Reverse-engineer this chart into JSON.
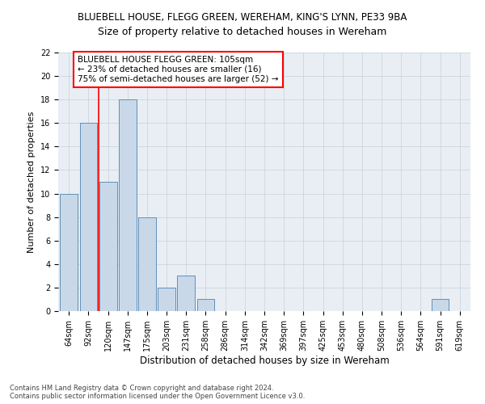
{
  "title1": "BLUEBELL HOUSE, FLEGG GREEN, WEREHAM, KING'S LYNN, PE33 9BA",
  "title2": "Size of property relative to detached houses in Wereham",
  "xlabel": "Distribution of detached houses by size in Wereham",
  "ylabel": "Number of detached properties",
  "categories": [
    "64sqm",
    "92sqm",
    "120sqm",
    "147sqm",
    "175sqm",
    "203sqm",
    "231sqm",
    "258sqm",
    "286sqm",
    "314sqm",
    "342sqm",
    "369sqm",
    "397sqm",
    "425sqm",
    "453sqm",
    "480sqm",
    "508sqm",
    "536sqm",
    "564sqm",
    "591sqm",
    "619sqm"
  ],
  "values": [
    10,
    16,
    11,
    18,
    8,
    2,
    3,
    1,
    0,
    0,
    0,
    0,
    0,
    0,
    0,
    0,
    0,
    0,
    0,
    1,
    0
  ],
  "bar_color": "#c8d8e8",
  "bar_edge_color": "#6090b8",
  "red_line_x": 1.5,
  "annotation_box_text": "BLUEBELL HOUSE FLEGG GREEN: 105sqm\n← 23% of detached houses are smaller (16)\n75% of semi-detached houses are larger (52) →",
  "ylim": [
    0,
    22
  ],
  "yticks": [
    0,
    2,
    4,
    6,
    8,
    10,
    12,
    14,
    16,
    18,
    20,
    22
  ],
  "grid_color": "#c8d0d8",
  "background_color": "#e8eef4",
  "footer_text": "Contains HM Land Registry data © Crown copyright and database right 2024.\nContains public sector information licensed under the Open Government Licence v3.0.",
  "title1_fontsize": 8.5,
  "title2_fontsize": 9,
  "xlabel_fontsize": 8.5,
  "ylabel_fontsize": 8,
  "tick_fontsize": 7,
  "annotation_fontsize": 7.5,
  "footer_fontsize": 6
}
